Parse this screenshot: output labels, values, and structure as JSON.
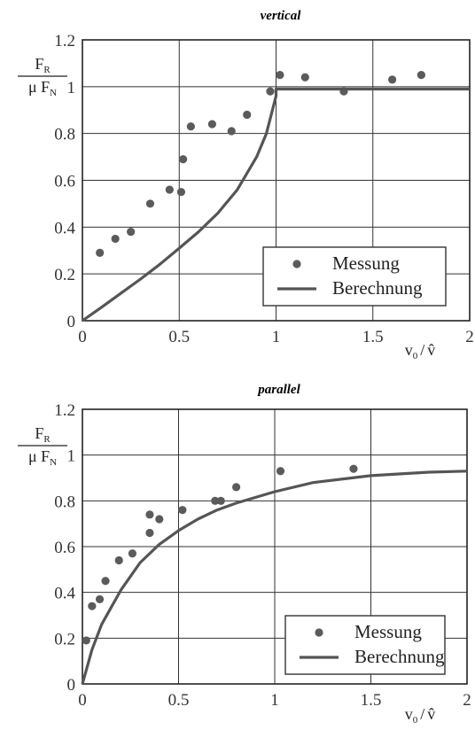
{
  "chart_data": [
    {
      "type": "scatter",
      "title": "vertical",
      "ylabel": {
        "num": "F",
        "num_sub": "R",
        "den": "μ F",
        "den_sub": "N"
      },
      "xlabel": {
        "a": "v",
        "a_sub": "0",
        "sep": "/",
        "b": "v̂"
      },
      "xlim": [
        0,
        2
      ],
      "ylim": [
        0,
        1.2
      ],
      "xticks": [
        "0",
        "0.5",
        "1",
        "1.5",
        "2"
      ],
      "yticks": [
        "0",
        "0.2",
        "0.4",
        "0.6",
        "0.8",
        "1",
        "1.2"
      ],
      "grid": true,
      "legend": {
        "position": "bottom-right",
        "entries": [
          "Messung",
          "Berechnung"
        ]
      },
      "series": [
        {
          "name": "Messung",
          "kind": "points",
          "x": [
            0.09,
            0.17,
            0.25,
            0.35,
            0.45,
            0.51,
            0.52,
            0.56,
            0.67,
            0.77,
            0.85,
            0.97,
            1.02,
            1.15,
            1.35,
            1.6,
            1.75
          ],
          "y": [
            0.29,
            0.35,
            0.38,
            0.5,
            0.56,
            0.55,
            0.69,
            0.83,
            0.84,
            0.81,
            0.88,
            0.98,
            1.05,
            1.04,
            0.98,
            1.03,
            1.05
          ]
        },
        {
          "name": "Berechnung",
          "kind": "line",
          "x": [
            0,
            0.1,
            0.2,
            0.3,
            0.4,
            0.5,
            0.6,
            0.7,
            0.8,
            0.9,
            0.95,
            1.0,
            1.0,
            1.5,
            2.0
          ],
          "y": [
            0,
            0.058,
            0.118,
            0.178,
            0.241,
            0.31,
            0.38,
            0.46,
            0.56,
            0.7,
            0.8,
            0.96,
            0.99,
            0.99,
            0.99
          ]
        }
      ]
    },
    {
      "type": "scatter",
      "title": "parallel",
      "ylabel": {
        "num": "F",
        "num_sub": "R",
        "den": "μ F",
        "den_sub": "N"
      },
      "xlabel": {
        "a": "v",
        "a_sub": "0",
        "sep": "/",
        "b": "v̂"
      },
      "xlim": [
        0,
        2
      ],
      "ylim": [
        0,
        1.2
      ],
      "xticks": [
        "0",
        "0.5",
        "1",
        "1.5",
        "2"
      ],
      "yticks": [
        "0",
        "0.2",
        "0.4",
        "0.6",
        "0.8",
        "1",
        "1.2"
      ],
      "grid": true,
      "legend": {
        "position": "bottom-right",
        "entries": [
          "Messung",
          "Berechnung"
        ]
      },
      "series": [
        {
          "name": "Messung",
          "kind": "points",
          "x": [
            0.02,
            0.05,
            0.09,
            0.12,
            0.19,
            0.26,
            0.35,
            0.35,
            0.4,
            0.52,
            0.69,
            0.72,
            0.8,
            1.03,
            1.41
          ],
          "y": [
            0.19,
            0.34,
            0.37,
            0.45,
            0.54,
            0.57,
            0.66,
            0.74,
            0.72,
            0.76,
            0.8,
            0.8,
            0.86,
            0.93,
            0.94
          ]
        },
        {
          "name": "Berechnung",
          "kind": "line",
          "x": [
            0,
            0.05,
            0.1,
            0.2,
            0.3,
            0.4,
            0.5,
            0.6,
            0.7,
            0.8,
            1.0,
            1.2,
            1.5,
            1.8,
            2.0
          ],
          "y": [
            0,
            0.15,
            0.26,
            0.41,
            0.53,
            0.61,
            0.67,
            0.72,
            0.76,
            0.79,
            0.84,
            0.88,
            0.91,
            0.925,
            0.93
          ]
        }
      ]
    }
  ]
}
